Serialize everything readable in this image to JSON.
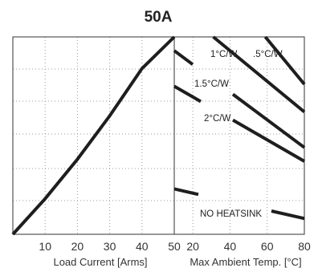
{
  "chart_data": {
    "type": "line",
    "title": "50A",
    "left_panel": {
      "xlabel": "Load Current  [Arms]",
      "xlim": [
        0,
        50
      ],
      "x_ticks": [
        "10",
        "20",
        "30",
        "40",
        "50"
      ],
      "series": [
        {
          "x": [
            0,
            10,
            20,
            30,
            40,
            50
          ],
          "y": [
            0.0,
            0.18,
            0.38,
            0.6,
            0.84,
            1.0
          ]
        }
      ]
    },
    "right_panel": {
      "xlabel": "Max Ambient Temp. [°C]",
      "xlim": [
        10,
        80
      ],
      "x_ticks": [
        "20",
        "40",
        "60",
        "80"
      ],
      "series": [
        {
          "name": "1°C/W",
          "x": [
            31,
            80
          ],
          "y": [
            1.0,
            0.62
          ]
        },
        {
          "name": ".5°C/W",
          "x": [
            59,
            80
          ],
          "y": [
            1.0,
            0.76
          ]
        },
        {
          "name": "1.5°C/W",
          "x": [
            10,
            80
          ],
          "y": [
            0.93,
            0.44
          ]
        },
        {
          "name": "2°C/W",
          "x": [
            10,
            80
          ],
          "y": [
            0.75,
            0.37
          ]
        },
        {
          "name": "NO HEATSINK",
          "x": [
            10,
            80
          ],
          "y": [
            0.23,
            0.08
          ]
        }
      ]
    },
    "grid": true
  }
}
